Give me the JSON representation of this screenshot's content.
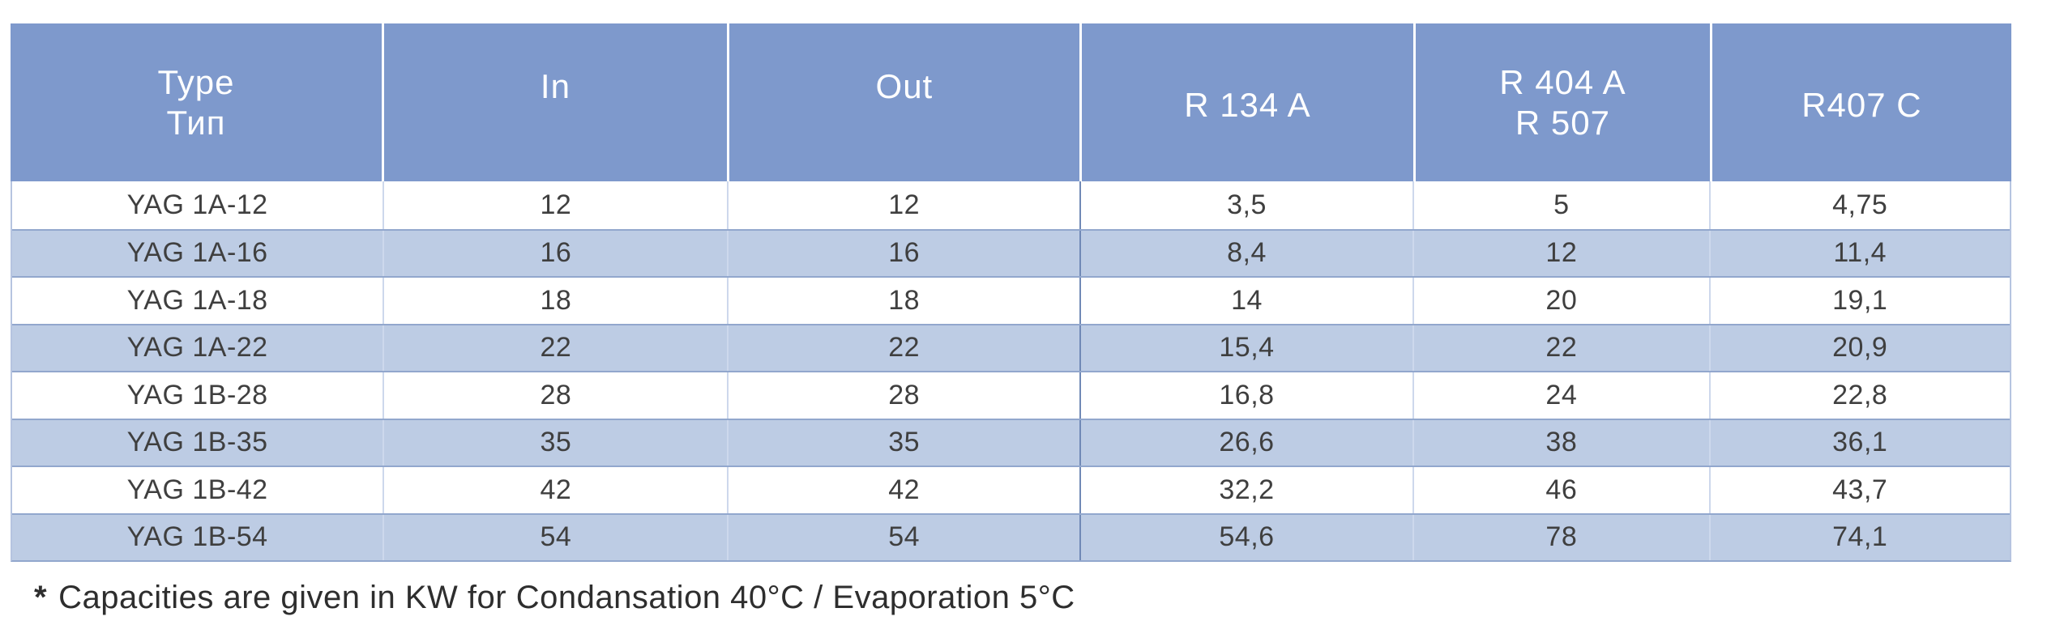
{
  "table": {
    "header": {
      "type_line1": "Type",
      "type_line2": "Тип",
      "in": "In",
      "out": "Out",
      "r134a": "R 134 A",
      "r404a_line1": "R 404 A",
      "r404a_line2": "R 507",
      "r407c": "R407 C"
    },
    "rows": [
      {
        "type": "YAG 1A-12",
        "in": "12",
        "out": "12",
        "r134a": "3,5",
        "r404a": "5",
        "r407c": "4,75"
      },
      {
        "type": "YAG 1A-16",
        "in": "16",
        "out": "16",
        "r134a": "8,4",
        "r404a": "12",
        "r407c": "11,4"
      },
      {
        "type": "YAG 1A-18",
        "in": "18",
        "out": "18",
        "r134a": "14",
        "r404a": "20",
        "r407c": "19,1"
      },
      {
        "type": "YAG 1A-22",
        "in": "22",
        "out": "22",
        "r134a": "15,4",
        "r404a": "22",
        "r407c": "20,9"
      },
      {
        "type": "YAG 1B-28",
        "in": "28",
        "out": "28",
        "r134a": "16,8",
        "r404a": "24",
        "r407c": "22,8"
      },
      {
        "type": "YAG 1B-35",
        "in": "35",
        "out": "35",
        "r134a": "26,6",
        "r404a": "38",
        "r407c": "36,1"
      },
      {
        "type": "YAG 1B-42",
        "in": "42",
        "out": "42",
        "r134a": "32,2",
        "r404a": "46",
        "r407c": "43,7"
      },
      {
        "type": "YAG 1B-54",
        "in": "54",
        "out": "54",
        "r134a": "54,6",
        "r404a": "78",
        "r407c": "74,1"
      }
    ]
  },
  "footnote": {
    "marker": "*",
    "text": "Capacities are given in KW for Condansation 40°C / Evaporation 5°C"
  },
  "colors": {
    "header_bg": "#7E99CC",
    "stripe_bg": "#BDCCE4",
    "row_border": "#92A7CD",
    "column_border": "#CDD8EC",
    "strong_column_border": "#7089B6",
    "header_text": "#FFFFFF",
    "body_text": "#3F3F3F"
  }
}
